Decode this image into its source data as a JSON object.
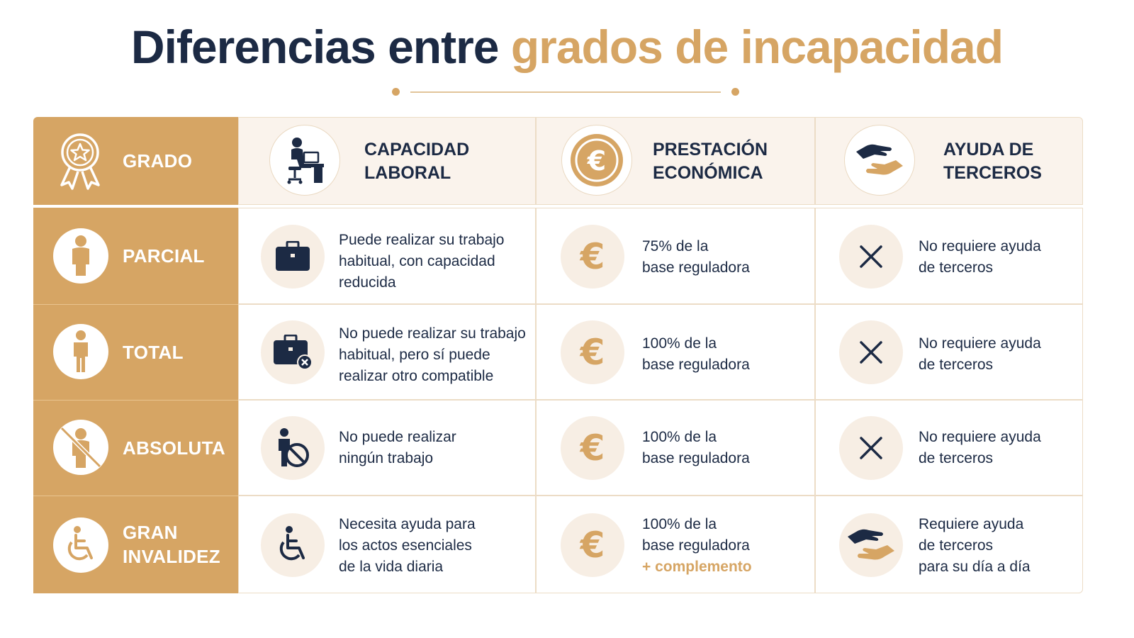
{
  "title": {
    "part1": "Diferencias entre",
    "part2": "grados de incapacidad"
  },
  "colors": {
    "navy": "#1c2a44",
    "gold": "#d6a564",
    "cream": "#faf3ec"
  },
  "header": {
    "grado": "GRADO",
    "capacidad": [
      "CAPACIDAD",
      "LABORAL"
    ],
    "prestacion": [
      "PRESTACIÓN",
      "ECONÓMICA"
    ],
    "ayuda": [
      "AYUDA DE",
      "TERCEROS"
    ],
    "icons": [
      "award-ribbon-star-icon",
      "person-at-desk-icon",
      "euro-coin-icon",
      "helping-hands-icon"
    ]
  },
  "rows": [
    {
      "grado": [
        "PARCIAL"
      ],
      "grado_icon": "person-icon",
      "capacidad": [
        "Puede realizar su trabajo",
        "habitual, con capacidad",
        "reducida"
      ],
      "capacidad_icon": "briefcase-icon",
      "prestacion": [
        "75% de la",
        "base reguladora"
      ],
      "prestacion_icon": "euro-icon",
      "ayuda": [
        "No requiere ayuda",
        "de terceros"
      ],
      "ayuda_icon": "x-icon"
    },
    {
      "grado": [
        "TOTAL"
      ],
      "grado_icon": "person-icon",
      "capacidad": [
        "No puede realizar su trabajo",
        "habitual, pero sí puede",
        "realizar otro compatible"
      ],
      "capacidad_icon": "briefcase-x-icon",
      "prestacion": [
        "100% de la",
        "base reguladora"
      ],
      "prestacion_icon": "euro-icon",
      "ayuda": [
        "No requiere ayuda",
        "de terceros"
      ],
      "ayuda_icon": "x-icon"
    },
    {
      "grado": [
        "ABSOLUTA"
      ],
      "grado_icon": "person-crossed-icon",
      "capacidad": [
        "No puede realizar",
        "ningún trabajo"
      ],
      "capacidad_icon": "person-prohibited-icon",
      "prestacion": [
        "100% de la",
        "base reguladora"
      ],
      "prestacion_icon": "euro-icon",
      "ayuda": [
        "No requiere ayuda",
        "de terceros"
      ],
      "ayuda_icon": "x-icon"
    },
    {
      "grado": [
        "GRAN",
        "INVALIDEZ"
      ],
      "grado_icon": "wheelchair-icon",
      "capacidad": [
        "Necesita ayuda para",
        "los actos esenciales",
        "de la vida diaria"
      ],
      "capacidad_icon": "wheelchair-icon",
      "prestacion": [
        "100% de la",
        "base reguladora"
      ],
      "prestacion_extra": "+ complemento",
      "prestacion_icon": "euro-icon",
      "ayuda": [
        "Requiere ayuda",
        "de terceros",
        "para su día a día"
      ],
      "ayuda_icon": "helping-hands-icon"
    }
  ]
}
